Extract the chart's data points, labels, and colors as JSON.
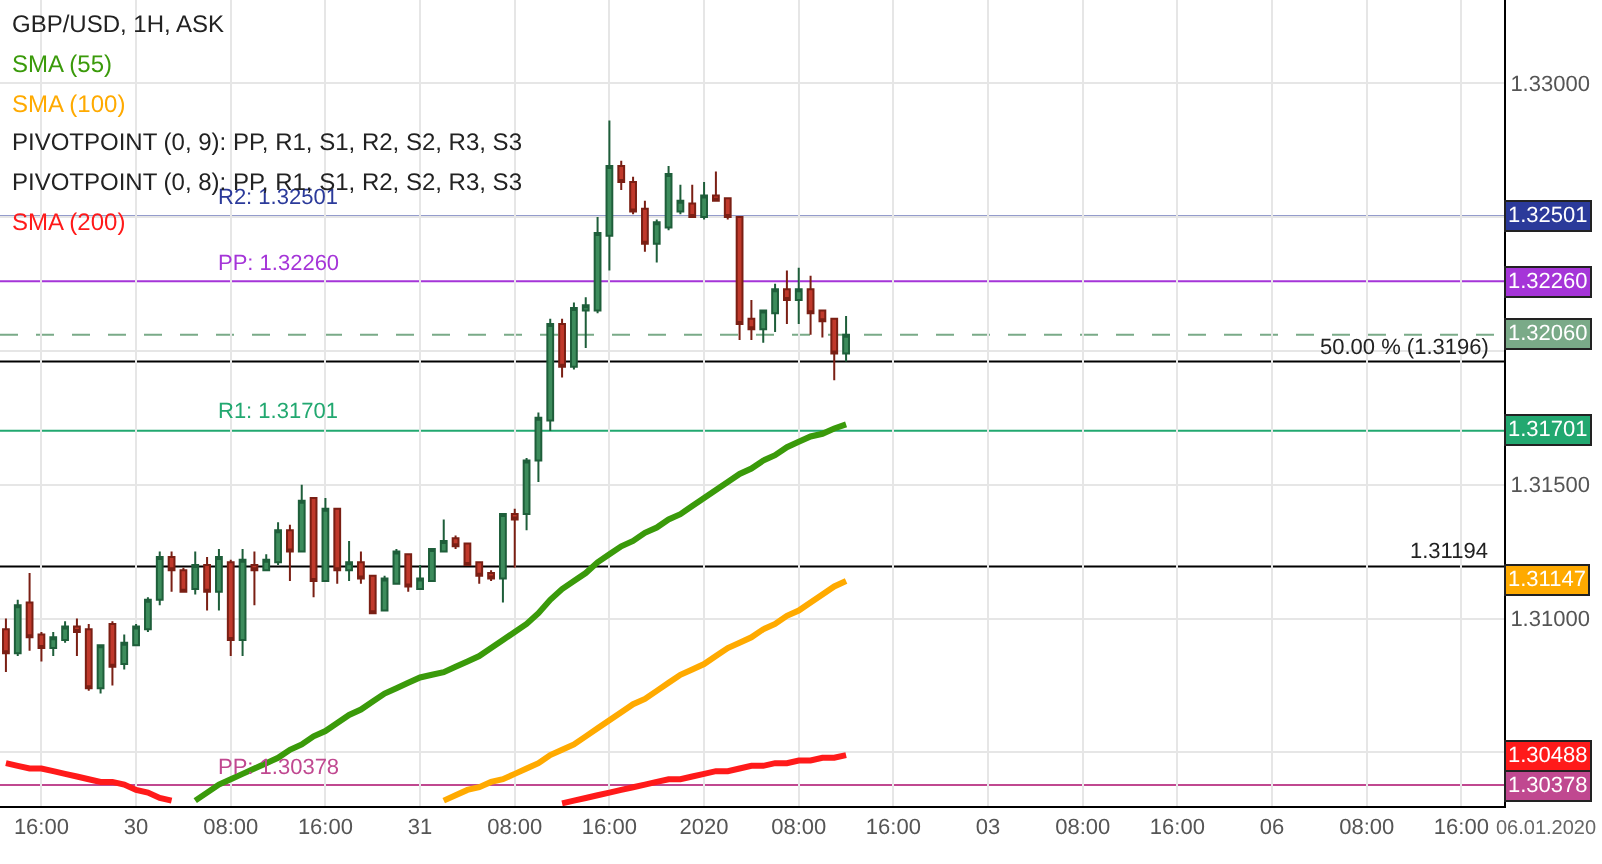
{
  "chart_data": {
    "type": "candlestick",
    "title": "GBP/USD, 1H, ASK",
    "categories": [
      null,
      null,
      null,
      "16:00",
      null,
      null,
      null,
      null,
      null,
      null,
      null,
      "30",
      null,
      null,
      null,
      null,
      null,
      null,
      null,
      "08:00",
      null,
      null,
      null,
      null,
      null,
      null,
      null,
      "16:00",
      null,
      null,
      null,
      null,
      null,
      null,
      null,
      "31",
      null,
      null,
      null,
      null,
      null,
      null,
      null,
      "08:00",
      null,
      null,
      null,
      null,
      null,
      null,
      null,
      "16:00",
      null,
      null,
      null,
      null,
      null,
      null,
      null,
      "2020",
      null,
      null,
      null,
      null,
      null,
      null,
      null,
      "08:00",
      null,
      null,
      null,
      null,
      null,
      null,
      null,
      "16:00",
      null,
      null,
      null,
      null,
      null,
      null,
      null,
      "03",
      null,
      null,
      null,
      null,
      null,
      null,
      null,
      "08:00",
      null,
      null,
      null,
      null,
      null,
      null,
      null,
      "16:00",
      null,
      null,
      null,
      null,
      null,
      null,
      null,
      "06",
      null,
      null,
      null,
      null,
      null,
      null,
      null,
      "08:00",
      null,
      null,
      null,
      null,
      null,
      null,
      null,
      "16:00",
      null,
      null,
      null
    ],
    "ohlc": [
      [
        1.3096,
        1.31,
        1.308,
        1.3087
      ],
      [
        1.3087,
        1.3107,
        1.3086,
        1.3105
      ],
      [
        1.3106,
        1.3117,
        1.3088,
        1.3093
      ],
      [
        1.3094,
        1.3095,
        1.3084,
        1.3089
      ],
      [
        1.3089,
        1.3095,
        1.3086,
        1.3093
      ],
      [
        1.3092,
        1.3099,
        1.3091,
        1.3097
      ],
      [
        1.3097,
        1.31,
        1.3086,
        1.3095
      ],
      [
        1.3096,
        1.3098,
        1.3073,
        1.3074
      ],
      [
        1.3074,
        1.309,
        1.3072,
        1.309
      ],
      [
        1.3098,
        1.3099,
        1.3075,
        1.3082
      ],
      [
        1.3083,
        1.3094,
        1.3081,
        1.3091
      ],
      [
        1.309,
        1.3098,
        1.309,
        1.3097
      ],
      [
        1.3096,
        1.3108,
        1.3095,
        1.3107
      ],
      [
        1.3107,
        1.3125,
        1.3105,
        1.3123
      ],
      [
        1.3123,
        1.3125,
        1.311,
        1.3118
      ],
      [
        1.3118,
        1.3119,
        1.311,
        1.311
      ],
      [
        1.3111,
        1.3125,
        1.3109,
        1.312
      ],
      [
        1.312,
        1.3123,
        1.3103,
        1.311
      ],
      [
        1.311,
        1.3126,
        1.3103,
        1.3123
      ],
      [
        1.3121,
        1.3122,
        1.3086,
        1.3092
      ],
      [
        1.3092,
        1.3126,
        1.3086,
        1.3122
      ],
      [
        1.312,
        1.3125,
        1.3105,
        1.3118
      ],
      [
        1.3118,
        1.3124,
        1.3118,
        1.3122
      ],
      [
        1.3121,
        1.3136,
        1.312,
        1.3133
      ],
      [
        1.3133,
        1.3135,
        1.3114,
        1.3125
      ],
      [
        1.3125,
        1.315,
        1.3125,
        1.3144
      ],
      [
        1.3145,
        1.3145,
        1.3108,
        1.3114
      ],
      [
        1.3114,
        1.3145,
        1.3114,
        1.3141
      ],
      [
        1.3141,
        1.3141,
        1.3113,
        1.3118
      ],
      [
        1.3118,
        1.3129,
        1.3114,
        1.3121
      ],
      [
        1.3121,
        1.3125,
        1.3113,
        1.3115
      ],
      [
        1.3116,
        1.3116,
        1.3102,
        1.3102
      ],
      [
        1.3103,
        1.3116,
        1.3103,
        1.3115
      ],
      [
        1.3113,
        1.3126,
        1.3113,
        1.3125
      ],
      [
        1.3124,
        1.3124,
        1.311,
        1.3112
      ],
      [
        1.3111,
        1.312,
        1.3111,
        1.3115
      ],
      [
        1.3114,
        1.3126,
        1.3114,
        1.3126
      ],
      [
        1.3125,
        1.3137,
        1.3125,
        1.3129
      ],
      [
        1.313,
        1.3131,
        1.3126,
        1.3127
      ],
      [
        1.3128,
        1.3128,
        1.312,
        1.312
      ],
      [
        1.3121,
        1.3121,
        1.3113,
        1.3116
      ],
      [
        1.3117,
        1.3118,
        1.3114,
        1.3115
      ],
      [
        1.3115,
        1.3139,
        1.3106,
        1.3139
      ],
      [
        1.3139,
        1.3141,
        1.3119,
        1.3137
      ],
      [
        1.3139,
        1.316,
        1.3133,
        1.3159
      ],
      [
        1.3159,
        1.3177,
        1.3151,
        1.3175
      ],
      [
        1.3174,
        1.3212,
        1.317,
        1.321
      ],
      [
        1.321,
        1.3212,
        1.319,
        1.3194
      ],
      [
        1.3194,
        1.3218,
        1.3193,
        1.3216
      ],
      [
        1.3215,
        1.322,
        1.3201,
        1.3217
      ],
      [
        1.3215,
        1.325,
        1.3214,
        1.3244
      ],
      [
        1.3243,
        1.3286,
        1.323,
        1.3269
      ],
      [
        1.3269,
        1.3271,
        1.326,
        1.3263
      ],
      [
        1.3263,
        1.3265,
        1.3251,
        1.3252
      ],
      [
        1.3253,
        1.3256,
        1.3237,
        1.324
      ],
      [
        1.324,
        1.3249,
        1.3233,
        1.3248
      ],
      [
        1.3246,
        1.3269,
        1.3245,
        1.3266
      ],
      [
        1.3252,
        1.3262,
        1.3251,
        1.3256
      ],
      [
        1.3255,
        1.3262,
        1.325,
        1.325
      ],
      [
        1.325,
        1.3263,
        1.3249,
        1.3258
      ],
      [
        1.3258,
        1.3267,
        1.3256,
        1.3256
      ],
      [
        1.3257,
        1.3257,
        1.3249,
        1.325
      ],
      [
        1.325,
        1.325,
        1.3204,
        1.321
      ],
      [
        1.3212,
        1.3219,
        1.3204,
        1.3208
      ],
      [
        1.3208,
        1.3215,
        1.3203,
        1.3215
      ],
      [
        1.3214,
        1.3225,
        1.3207,
        1.3223
      ],
      [
        1.3223,
        1.323,
        1.321,
        1.3219
      ],
      [
        1.3219,
        1.3231,
        1.321,
        1.3223
      ],
      [
        1.3223,
        1.3228,
        1.3206,
        1.3214
      ],
      [
        1.3215,
        1.3215,
        1.3205,
        1.3211
      ],
      [
        1.3212,
        1.3212,
        1.3189,
        1.3199
      ],
      [
        1.3199,
        1.3213,
        1.3196,
        1.3206
      ],
      null,
      null,
      null,
      null,
      null,
      null,
      null,
      null,
      null,
      null,
      null,
      null,
      null,
      null,
      null,
      null,
      null,
      null,
      null,
      null,
      null,
      null,
      null,
      null,
      null,
      null,
      null,
      null,
      null,
      null,
      null,
      null,
      null,
      null,
      null,
      null,
      null,
      null,
      null,
      null,
      null,
      null,
      null,
      null,
      null,
      null,
      null,
      null,
      null,
      null,
      null,
      null,
      null,
      null,
      null
    ],
    "series": [
      {
        "type": "line",
        "name": "SMA (55)",
        "color": "#3a9a0a",
        "values": [
          null,
          null,
          null,
          null,
          null,
          null,
          null,
          null,
          null,
          null,
          null,
          null,
          null,
          null,
          null,
          null,
          1.3032,
          1.3035,
          1.3038,
          1.304,
          1.3042,
          1.3044,
          1.3046,
          1.3048,
          1.3051,
          1.3053,
          1.3056,
          1.3058,
          1.3061,
          1.3064,
          1.3066,
          1.3069,
          1.3072,
          1.3074,
          1.3076,
          1.3078,
          1.3079,
          1.308,
          1.3082,
          1.3084,
          1.3086,
          1.3089,
          1.3092,
          1.3095,
          1.3098,
          1.3102,
          1.3107,
          1.3111,
          1.3114,
          1.3117,
          1.3121,
          1.3124,
          1.3127,
          1.3129,
          1.3132,
          1.3134,
          1.3137,
          1.3139,
          1.3142,
          1.3145,
          1.3148,
          1.3151,
          1.3154,
          1.3156,
          1.3159,
          1.3161,
          1.3164,
          1.3166,
          1.3168,
          1.3169,
          1.3171,
          1.31725,
          null,
          null,
          null,
          null,
          null,
          null,
          null,
          null,
          null,
          null,
          null,
          null,
          null,
          null,
          null,
          null,
          null,
          null,
          null,
          null,
          null,
          null,
          null,
          null,
          null,
          null,
          null,
          null,
          null,
          null,
          null,
          null,
          null,
          null,
          null,
          null,
          null,
          null,
          null,
          null,
          null,
          null,
          null,
          null,
          null,
          null,
          null,
          null,
          null,
          null,
          null,
          null,
          null,
          null,
          null
        ]
      },
      {
        "type": "line",
        "name": "SMA (100)",
        "color": "#ffaa00",
        "values": [
          null,
          null,
          null,
          null,
          null,
          null,
          null,
          null,
          null,
          null,
          null,
          null,
          null,
          null,
          null,
          null,
          null,
          null,
          null,
          null,
          null,
          null,
          null,
          null,
          null,
          null,
          null,
          null,
          null,
          null,
          null,
          null,
          null,
          null,
          null,
          null,
          null,
          1.3032,
          1.3034,
          1.3036,
          1.3037,
          1.3039,
          1.304,
          1.3042,
          1.3044,
          1.3046,
          1.3049,
          1.3051,
          1.3053,
          1.3056,
          1.3059,
          1.3062,
          1.3065,
          1.3068,
          1.307,
          1.3073,
          1.3076,
          1.3079,
          1.3081,
          1.3083,
          1.3086,
          1.3089,
          1.3091,
          1.3093,
          1.3096,
          1.3098,
          1.3101,
          1.3103,
          1.3106,
          1.3109,
          1.3112,
          1.3114,
          null,
          null,
          null,
          null,
          null,
          null,
          null,
          null,
          null,
          null,
          null,
          null,
          null,
          null,
          null,
          null,
          null,
          null,
          null,
          null,
          null,
          null,
          null,
          null,
          null,
          null,
          null,
          null,
          null,
          null,
          null,
          null,
          null,
          null,
          null,
          null,
          null,
          null,
          null,
          null,
          null,
          null,
          null,
          null,
          null,
          null,
          null,
          null,
          null,
          null,
          null,
          null,
          null,
          null,
          null
        ]
      },
      {
        "type": "line",
        "name": "SMA (200)",
        "color": "#ff1a1a",
        "values": [
          1.3046,
          1.3045,
          1.3044,
          1.3044,
          1.3043,
          1.3042,
          1.3041,
          1.304,
          1.3039,
          1.3039,
          1.3038,
          1.3036,
          1.3035,
          1.3033,
          1.3032,
          null,
          null,
          null,
          null,
          null,
          null,
          null,
          null,
          null,
          null,
          null,
          null,
          null,
          null,
          null,
          null,
          null,
          null,
          null,
          null,
          null,
          null,
          null,
          null,
          null,
          null,
          null,
          null,
          null,
          null,
          null,
          null,
          1.3031,
          1.3032,
          1.3033,
          1.3034,
          1.3035,
          1.3036,
          1.3037,
          1.3038,
          1.3039,
          1.304,
          1.304,
          1.3041,
          1.3042,
          1.3043,
          1.3043,
          1.3044,
          1.3045,
          1.3045,
          1.3046,
          1.3046,
          1.3047,
          1.3047,
          1.3048,
          1.3048,
          1.3049,
          null,
          null,
          null,
          null,
          null,
          null,
          null,
          null,
          null,
          null,
          null,
          null,
          null,
          null,
          null,
          null,
          null,
          null,
          null,
          null,
          null,
          null,
          null,
          null,
          null,
          null,
          null,
          null,
          null,
          null,
          null,
          null,
          null,
          null,
          null,
          null,
          null,
          null,
          null,
          null,
          null,
          null,
          null,
          null,
          null,
          null,
          null,
          null,
          null,
          null,
          null,
          null,
          null,
          null,
          null
        ]
      }
    ],
    "ylim": [
      1.303,
      1.3331
    ],
    "yticks": [
      {
        "value": 1.305,
        "label": null
      },
      {
        "value": 1.31,
        "label": "1.31000"
      },
      {
        "value": 1.315,
        "label": "1.31500"
      },
      {
        "value": 1.32,
        "label": null
      },
      {
        "value": 1.325,
        "label": null
      },
      {
        "value": 1.33,
        "label": "1.33000"
      }
    ],
    "grid": true,
    "ref_lines": [
      {
        "axis": "y",
        "value": 1.32501,
        "label": "R2: 1.32501",
        "color": "#2b3a9a"
      },
      {
        "axis": "y",
        "value": 1.3226,
        "label": "PP: 1.32260",
        "color": "#a535d8"
      },
      {
        "axis": "y",
        "value": 1.3206,
        "label": null,
        "color": "#7aaa88",
        "line_style": "dashed"
      },
      {
        "axis": "y",
        "value": 1.3196,
        "label": "50.00 % (1.3196)"
      },
      {
        "axis": "y",
        "value": 1.31701,
        "label": "R1: 1.31701",
        "color": "#22a870"
      },
      {
        "axis": "y",
        "value": 1.31194,
        "label": "1.31194"
      },
      {
        "axis": "y",
        "value": 1.30378,
        "label": "PP: 1.30378",
        "color": "#c04890"
      }
    ],
    "annotations": [
      "PIVOTPOINT (0, 9): PP, R1, S1, R2, S2, R3, S3",
      "PIVOTPOINT (0, 8): PP, R1, S1, R2, S2, R3, S3",
      "06.01.2020",
      {
        "text": "1.32501",
        "y": 1.32501
      },
      {
        "text": "1.32260",
        "y": 1.3226
      },
      {
        "text": "1.32060",
        "y": 1.3206
      },
      {
        "text": "1.31701",
        "y": 1.31701
      },
      {
        "text": "1.31147",
        "y": 1.31147
      },
      {
        "text": "1.30488",
        "y": 1.30488
      },
      {
        "text": "1.30378",
        "y": 1.30378
      }
    ]
  }
}
